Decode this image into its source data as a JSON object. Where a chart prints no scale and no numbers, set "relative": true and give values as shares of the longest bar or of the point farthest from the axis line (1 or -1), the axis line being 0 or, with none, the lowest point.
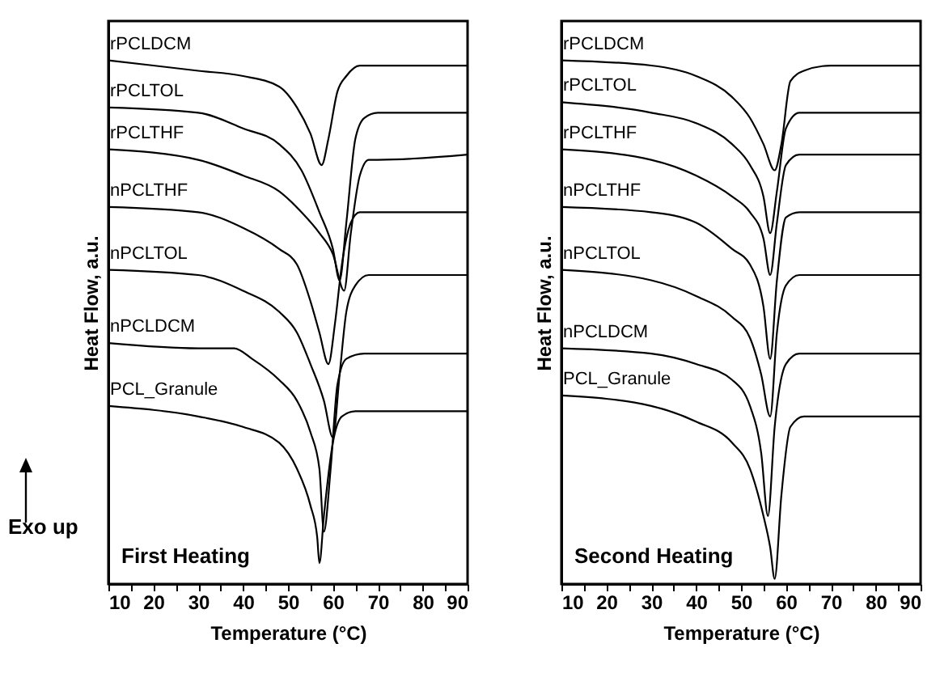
{
  "chart_data": [
    {
      "type": "line",
      "relative": true,
      "xlabel": "Temperature (°C)",
      "ylabel": "Heat Flow, a.u.",
      "tick_labels": "x",
      "xlim": [
        10,
        90
      ],
      "xticks": [
        10,
        {
          "value": 15,
          "label": null
        },
        20,
        {
          "value": 25,
          "label": null
        },
        30,
        {
          "value": 35,
          "label": null
        },
        40,
        {
          "value": 45,
          "label": null
        },
        50,
        {
          "value": 55,
          "label": null
        },
        60,
        {
          "value": 65,
          "label": null
        },
        70,
        {
          "value": 75,
          "label": null
        },
        80,
        {
          "value": 85,
          "label": null
        },
        90
      ],
      "annotations": [
        "First Heating",
        "Exo up"
      ],
      "series": [
        {
          "name": "rPCLDCM",
          "color": "#000000",
          "x": [
            10,
            30,
            40,
            48,
            52,
            55,
            57.5,
            59,
            61,
            63,
            66,
            70,
            90
          ],
          "values": [
            1,
            0.98,
            0.97,
            0.95,
            0.91,
            0.86,
            0.8,
            0.85,
            0.94,
            0.97,
            0.99,
            0.99,
            0.99
          ]
        },
        {
          "name": "rPCLTOL",
          "color": "#000000",
          "x": [
            10,
            30,
            40,
            48,
            53,
            57,
            60,
            61.5,
            63,
            65,
            67,
            70,
            90
          ],
          "values": [
            0.91,
            0.9,
            0.87,
            0.84,
            0.79,
            0.71,
            0.64,
            0.58,
            0.69,
            0.85,
            0.89,
            0.9,
            0.9
          ]
        },
        {
          "name": "rPCLTHF",
          "color": "#000000",
          "x": [
            10,
            30,
            40,
            48,
            53,
            57,
            60,
            62.5,
            64,
            66,
            68,
            70,
            90
          ],
          "values": [
            0.83,
            0.81,
            0.78,
            0.75,
            0.71,
            0.67,
            0.63,
            0.56,
            0.67,
            0.78,
            0.81,
            0.81,
            0.82
          ]
        },
        {
          "name": "nPCLTHF",
          "color": "#000000",
          "x": [
            10,
            30,
            40,
            48,
            52,
            55,
            57,
            59,
            60.5,
            62,
            64,
            66,
            70,
            90
          ],
          "values": [
            0.72,
            0.71,
            0.68,
            0.64,
            0.61,
            0.54,
            0.48,
            0.42,
            0.5,
            0.61,
            0.69,
            0.71,
            0.71,
            0.71
          ]
        },
        {
          "name": "nPCLTOL",
          "color": "#000000",
          "x": [
            10,
            30,
            40,
            48,
            52,
            55,
            58,
            60,
            61.5,
            63,
            65,
            68,
            90
          ],
          "values": [
            0.6,
            0.59,
            0.56,
            0.52,
            0.48,
            0.42,
            0.35,
            0.28,
            0.4,
            0.52,
            0.57,
            0.59,
            0.59
          ]
        },
        {
          "name": "nPCLDCM",
          "color": "#000000",
          "x": [
            10,
            30,
            38,
            42,
            48,
            52,
            55,
            57,
            58,
            59.5,
            61,
            63,
            67,
            90
          ],
          "values": [
            0.46,
            0.45,
            0.45,
            0.43,
            0.39,
            0.35,
            0.29,
            0.22,
            0.1,
            0.22,
            0.38,
            0.43,
            0.44,
            0.44
          ]
        },
        {
          "name": "PCL_Granule",
          "color": "#000000",
          "x": [
            10,
            30,
            40,
            48,
            52,
            55,
            56.5,
            57,
            58,
            60,
            62,
            65,
            90
          ],
          "values": [
            0.34,
            0.32,
            0.3,
            0.27,
            0.22,
            0.15,
            0.09,
            0.04,
            0.13,
            0.27,
            0.32,
            0.33,
            0.33
          ]
        }
      ]
    },
    {
      "type": "line",
      "relative": true,
      "xlabel": "Temperature (°C)",
      "ylabel": "Heat Flow, a.u.",
      "tick_labels": "x",
      "xlim": [
        10,
        90
      ],
      "xticks": [
        10,
        {
          "value": 15,
          "label": null
        },
        20,
        {
          "value": 25,
          "label": null
        },
        30,
        {
          "value": 35,
          "label": null
        },
        40,
        {
          "value": 45,
          "label": null
        },
        50,
        {
          "value": 55,
          "label": null
        },
        60,
        {
          "value": 65,
          "label": null
        },
        70,
        {
          "value": 75,
          "label": null
        },
        80,
        {
          "value": 85,
          "label": null
        },
        90
      ],
      "annotations": [
        "Second Heating"
      ],
      "series": [
        {
          "name": "rPCLDCM",
          "color": "#000000",
          "x": [
            10,
            30,
            40,
            48,
            52,
            55,
            57.5,
            59,
            61,
            64,
            70,
            90
          ],
          "values": [
            1,
            0.99,
            0.97,
            0.93,
            0.89,
            0.84,
            0.79,
            0.84,
            0.96,
            0.98,
            0.99,
            0.99
          ]
        },
        {
          "name": "rPCLTOL",
          "color": "#000000",
          "x": [
            10,
            30,
            40,
            48,
            52,
            55,
            56.5,
            58,
            60,
            63,
            90
          ],
          "values": [
            0.92,
            0.9,
            0.88,
            0.84,
            0.8,
            0.74,
            0.67,
            0.75,
            0.87,
            0.9,
            0.9
          ]
        },
        {
          "name": "rPCLTHF",
          "color": "#000000",
          "x": [
            10,
            30,
            40,
            48,
            52,
            55,
            56.5,
            58,
            60,
            63,
            90
          ],
          "values": [
            0.83,
            0.81,
            0.78,
            0.74,
            0.71,
            0.66,
            0.59,
            0.69,
            0.8,
            0.82,
            0.82
          ]
        },
        {
          "name": "nPCLTHF",
          "color": "#000000",
          "x": [
            10,
            30,
            40,
            48,
            52,
            55,
            56.5,
            58,
            60,
            63,
            90
          ],
          "values": [
            0.72,
            0.71,
            0.69,
            0.64,
            0.61,
            0.53,
            0.43,
            0.58,
            0.7,
            0.71,
            0.71
          ]
        },
        {
          "name": "nPCLTOL",
          "color": "#000000",
          "x": [
            10,
            30,
            40,
            48,
            52,
            54.5,
            56.5,
            58,
            60,
            63,
            90
          ],
          "values": [
            0.6,
            0.58,
            0.55,
            0.51,
            0.47,
            0.4,
            0.32,
            0.48,
            0.57,
            0.59,
            0.59
          ]
        },
        {
          "name": "nPCLDCM",
          "color": "#000000",
          "x": [
            10,
            30,
            40,
            48,
            52,
            54.5,
            56,
            57.5,
            60,
            63,
            90
          ],
          "values": [
            0.45,
            0.44,
            0.42,
            0.39,
            0.34,
            0.25,
            0.13,
            0.3,
            0.42,
            0.44,
            0.44
          ]
        },
        {
          "name": "PCL_Granule",
          "color": "#000000",
          "x": [
            10,
            30,
            40,
            48,
            52,
            55,
            56.5,
            57.5,
            59,
            61,
            64,
            90
          ],
          "values": [
            0.36,
            0.34,
            0.31,
            0.27,
            0.22,
            0.13,
            0.07,
            0.01,
            0.17,
            0.3,
            0.32,
            0.32
          ]
        }
      ]
    }
  ]
}
